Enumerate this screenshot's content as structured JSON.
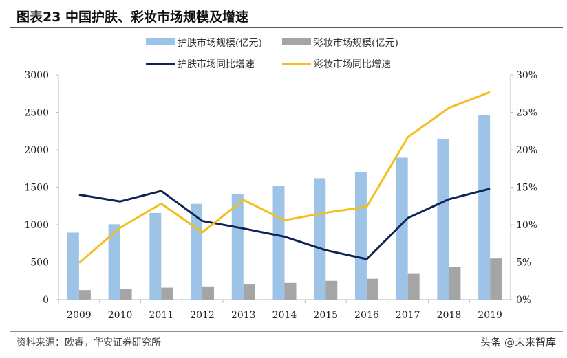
{
  "title": "图表23 中国护肤、彩妆市场规模及增速",
  "source": "资料来源：欧睿，华安证券研究所",
  "watermark": "头条 @未来智库",
  "chart_data": {
    "type": "bar+line",
    "categories": [
      "2009",
      "2010",
      "2011",
      "2012",
      "2013",
      "2014",
      "2015",
      "2016",
      "2017",
      "2018",
      "2019"
    ],
    "left_axis": {
      "ylim": [
        0,
        3000
      ],
      "ticks": [
        "0",
        "500",
        "1000",
        "1500",
        "2000",
        "2500",
        "3000"
      ]
    },
    "right_axis": {
      "ylim": [
        0,
        30
      ],
      "ticks": [
        "0%",
        "5%",
        "10%",
        "15%",
        "20%",
        "25%",
        "30%"
      ]
    },
    "grid": false,
    "legend_placement": "top",
    "series": [
      {
        "name": "护肤市场规模(亿元)",
        "kind": "bar",
        "axis": "left",
        "color": "#9dc3e6",
        "values": [
          895,
          1006,
          1157,
          1278,
          1404,
          1515,
          1620,
          1707,
          1895,
          2148,
          2463
        ]
      },
      {
        "name": "彩妆市场规模(亿元)",
        "kind": "bar",
        "axis": "left",
        "color": "#a5a5a5",
        "values": [
          127,
          139,
          160,
          176,
          201,
          222,
          250,
          278,
          343,
          432,
          549
        ]
      },
      {
        "name": "护肤市场同比增速",
        "kind": "line",
        "axis": "right",
        "color": "#0e2453",
        "values": [
          14.0,
          13.1,
          14.5,
          10.5,
          9.5,
          8.4,
          6.6,
          5.4,
          10.9,
          13.4,
          14.8
        ]
      },
      {
        "name": "彩妆市场同比增速",
        "kind": "line",
        "axis": "right",
        "color": "#f2bf1f",
        "values": [
          4.9,
          9.6,
          12.8,
          9.0,
          13.3,
          10.6,
          11.6,
          12.4,
          21.7,
          25.6,
          27.7
        ]
      }
    ]
  }
}
